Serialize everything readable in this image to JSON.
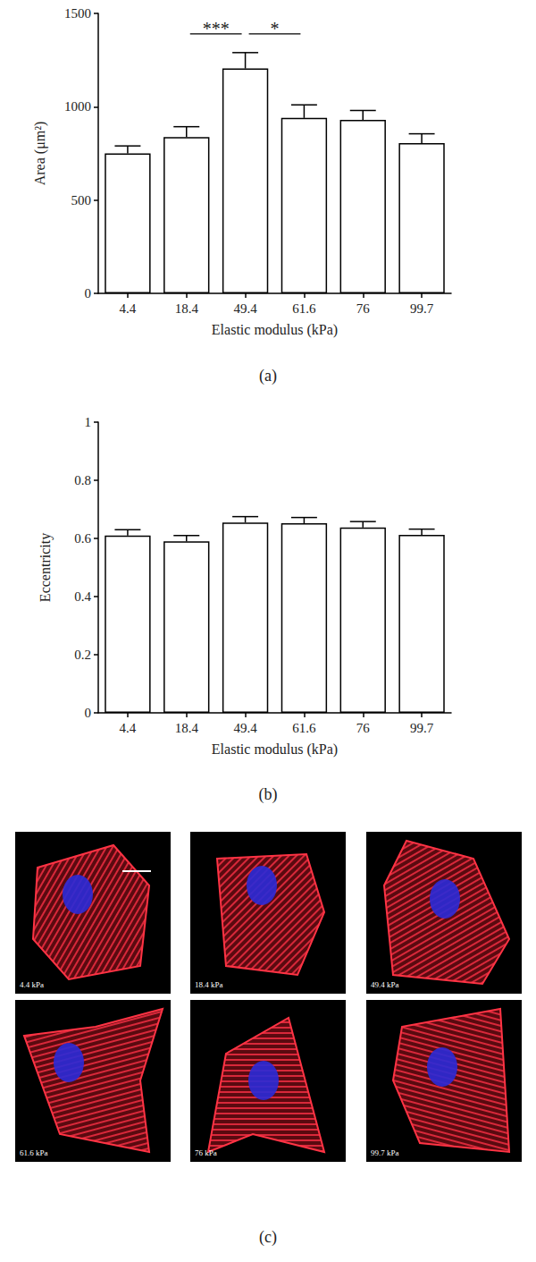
{
  "chart_data": [
    {
      "type": "bar",
      "caption": "(a)",
      "categories": [
        "4.4",
        "18.4",
        "49.4",
        "61.6",
        "76",
        "99.7"
      ],
      "values": [
        750,
        838,
        1205,
        940,
        930,
        805
      ],
      "errors": [
        40,
        55,
        85,
        70,
        50,
        50
      ],
      "x_label": "Elastic modulus (kPa)",
      "y_label": "Area (μm²)",
      "ylim": [
        0,
        1500
      ],
      "yticks": [
        0,
        500,
        1000,
        1500
      ],
      "color": "#ffffff",
      "grid": false,
      "significance": [
        {
          "from": "18.4",
          "to": "49.4",
          "label": "***",
          "y": 1390
        },
        {
          "from": "49.4",
          "to": "61.6",
          "label": "*",
          "y": 1390
        }
      ]
    },
    {
      "type": "bar",
      "caption": "(b)",
      "categories": [
        "4.4",
        "18.4",
        "49.4",
        "61.6",
        "76",
        "99.7"
      ],
      "values": [
        0.61,
        0.59,
        0.655,
        0.652,
        0.638,
        0.612
      ],
      "errors": [
        0.02,
        0.02,
        0.02,
        0.02,
        0.02,
        0.02
      ],
      "x_label": "Elastic modulus (kPa)",
      "y_label": "Eccentricity",
      "ylim": [
        0,
        1
      ],
      "yticks": [
        0,
        0.2,
        0.4,
        0.6,
        0.8,
        1
      ],
      "color": "#ffffff",
      "grid": false
    }
  ],
  "micrographs": {
    "caption": "(c)",
    "labels": [
      "4.4 kPa",
      "18.4 kPa",
      "49.4 kPa",
      "61.6 kPa",
      "76 kPa",
      "99.7 kPa"
    ]
  }
}
